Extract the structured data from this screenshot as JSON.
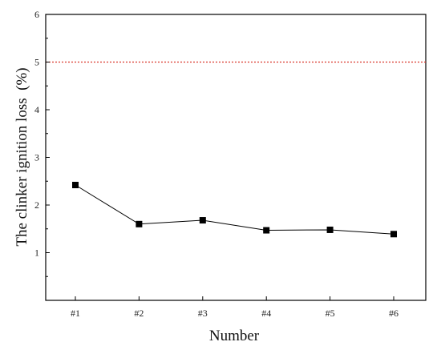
{
  "chart_data": {
    "type": "line",
    "xlabel": "Number",
    "ylabel": "The clinker ignition loss  (%)",
    "categories": [
      "#1",
      "#2",
      "#3",
      "#4",
      "#5",
      "#6"
    ],
    "series": [
      {
        "values": [
          2.42,
          1.6,
          1.68,
          1.47,
          1.48,
          1.39
        ],
        "marker": "square",
        "color": "#000000"
      }
    ],
    "reference_line": {
      "y": 5.0,
      "color": "#d9362b",
      "style": "dotted"
    },
    "ylim": [
      0,
      6
    ],
    "yticks": [
      "1",
      "2",
      "3",
      "4",
      "5",
      "6"
    ],
    "grid": false,
    "legend": false
  }
}
